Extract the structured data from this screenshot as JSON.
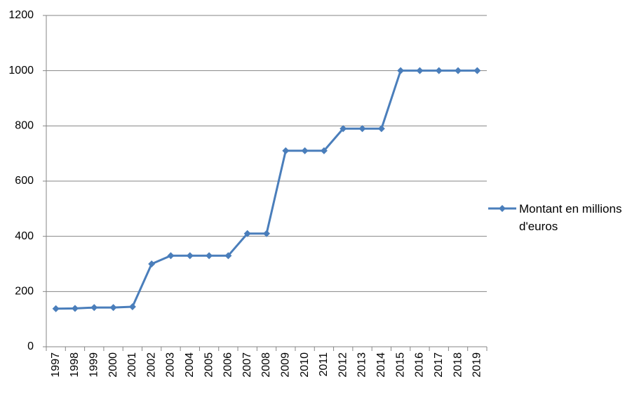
{
  "chart_data": {
    "type": "line",
    "categories": [
      "1997",
      "1998",
      "1999",
      "2000",
      "2001",
      "2002",
      "2003",
      "2004",
      "2005",
      "2006",
      "2007",
      "2008",
      "2009",
      "2010",
      "2011",
      "2012",
      "2013",
      "2014",
      "2015",
      "2016",
      "2017",
      "2018",
      "2019"
    ],
    "series": [
      {
        "name": "Montant en millions d'euros",
        "color": "#4a7ebb",
        "values": [
          138,
          139,
          142,
          142,
          145,
          300,
          330,
          330,
          330,
          330,
          410,
          410,
          710,
          710,
          710,
          790,
          790,
          790,
          1000,
          1000,
          1000,
          1000,
          1000
        ]
      }
    ],
    "ylim": [
      0,
      1200
    ],
    "yticks": [
      0,
      200,
      400,
      600,
      800,
      1000,
      1200
    ],
    "grid": true,
    "legend": "right"
  }
}
